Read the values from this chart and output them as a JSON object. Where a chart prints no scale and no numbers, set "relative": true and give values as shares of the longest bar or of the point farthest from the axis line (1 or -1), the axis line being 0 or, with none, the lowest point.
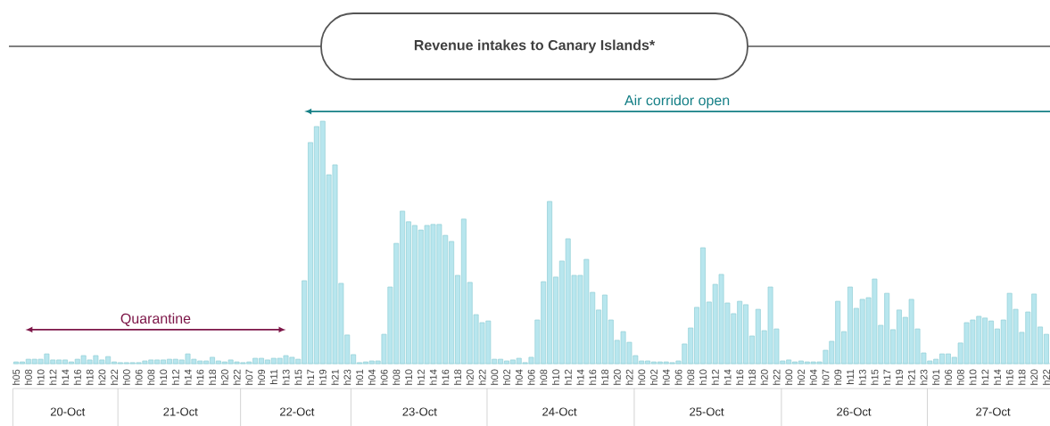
{
  "chart_data": {
    "type": "bar",
    "title": "Revenue intakes to Canary Islands*",
    "relative": true,
    "tick_labels": "x",
    "color": "#b8e6ee",
    "categories": [
      "h05",
      null,
      "h08",
      null,
      "h10",
      null,
      "h12",
      null,
      "h14",
      null,
      "h16",
      null,
      "h18",
      null,
      "h20",
      null,
      "h22",
      null,
      "h00",
      null,
      "h06",
      null,
      "h08",
      null,
      "h10",
      null,
      "h12",
      null,
      "h14",
      null,
      "h16",
      null,
      "h18",
      null,
      "h20",
      null,
      "h22",
      null,
      "h07",
      null,
      "h09",
      null,
      "h11",
      null,
      "h13",
      null,
      "h15",
      null,
      "h17",
      null,
      "h19",
      null,
      "h21",
      null,
      "h23",
      null,
      "h01",
      null,
      "h04",
      null,
      "h06",
      null,
      "h08",
      null,
      "h10",
      null,
      "h12",
      null,
      "h14",
      null,
      "h16",
      null,
      "h18",
      null,
      "h20",
      null,
      "h22",
      null,
      "h00",
      null,
      "h02",
      null,
      "h04",
      null,
      "h06",
      null,
      "h08",
      null,
      "h10",
      null,
      "h12",
      null,
      "h14",
      null,
      "h16",
      null,
      "h18",
      null,
      "h20",
      null,
      "h22",
      null,
      "h00",
      null,
      "h02",
      null,
      "h04",
      null,
      "h06",
      null,
      "h08",
      null,
      "h10",
      null,
      "h12",
      null,
      "h14",
      null,
      "h16",
      null,
      "h18",
      null,
      "h20",
      null,
      "h22",
      null,
      "h00",
      null,
      "h02",
      null,
      "h04",
      null,
      "h07",
      null,
      "h09",
      null,
      "h11",
      null,
      "h13",
      null,
      "h15",
      null,
      "h17",
      null,
      "h19",
      null,
      "h21",
      null,
      "h23",
      null,
      "h01",
      null,
      "h06",
      null,
      "h08",
      null,
      "h10",
      null,
      "h12",
      null,
      "h14",
      null,
      "h16",
      null,
      "h18",
      null,
      "h20",
      null,
      "h22"
    ],
    "values": [
      0.007,
      0.007,
      0.018,
      0.018,
      0.018,
      0.04,
      0.015,
      0.015,
      0.015,
      0.007,
      0.018,
      0.033,
      0.015,
      0.033,
      0.015,
      0.029,
      0.007,
      0.004,
      0.004,
      0.004,
      0.004,
      0.011,
      0.015,
      0.015,
      0.015,
      0.018,
      0.018,
      0.015,
      0.04,
      0.018,
      0.011,
      0.011,
      0.026,
      0.011,
      0.007,
      0.015,
      0.007,
      0.004,
      0.007,
      0.022,
      0.022,
      0.015,
      0.022,
      0.022,
      0.033,
      0.026,
      0.018,
      0.342,
      0.912,
      0.978,
      1,
      0.779,
      0.82,
      0.331,
      0.118,
      0.037,
      0.004,
      0.007,
      0.011,
      0.011,
      0.121,
      0.316,
      0.496,
      0.629,
      0.585,
      0.57,
      0.551,
      0.57,
      0.574,
      0.574,
      0.529,
      0.504,
      0.364,
      0.596,
      0.335,
      0.202,
      0.169,
      0.176,
      0.018,
      0.018,
      0.011,
      0.015,
      0.022,
      0.004,
      0.026,
      0.18,
      0.338,
      0.669,
      0.357,
      0.423,
      0.515,
      0.364,
      0.364,
      0.43,
      0.294,
      0.221,
      0.283,
      0.18,
      0.096,
      0.132,
      0.088,
      0.033,
      0.011,
      0.011,
      0.007,
      0.007,
      0.007,
      0.004,
      0.011,
      0.081,
      0.147,
      0.232,
      0.478,
      0.254,
      0.327,
      0.368,
      0.25,
      0.206,
      0.257,
      0.243,
      0.114,
      0.224,
      0.136,
      0.316,
      0.143,
      0.011,
      0.015,
      0.007,
      0.011,
      0.007,
      0.007,
      0.007,
      0.055,
      0.092,
      0.257,
      0.132,
      0.316,
      0.228,
      0.265,
      0.272,
      0.349,
      0.158,
      0.29,
      0.14,
      0.221,
      0.191,
      0.265,
      0.143,
      0.044,
      0.011,
      0.018,
      0.04,
      0.04,
      0.026,
      0.085,
      0.169,
      0.18,
      0.195,
      0.188,
      0.176,
      0.143,
      0.18,
      0.29,
      0.224,
      0.129,
      0.213,
      0.287,
      0.151,
      0.121
    ],
    "annotations": [
      "Quarantine",
      "Air corridor open",
      "20-Oct",
      "21-Oct",
      "22-Oct",
      "23-Oct",
      "24-Oct",
      "25-Oct",
      "26-Oct",
      "27-Oct"
    ]
  }
}
